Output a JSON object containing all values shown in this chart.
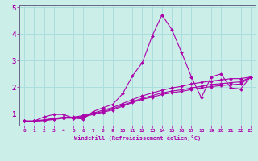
{
  "title": "",
  "xlabel": "Windchill (Refroidissement éolien,°C)",
  "ylabel": "",
  "bg_color": "#cceee8",
  "grid_color": "#aadddd",
  "line_color": "#aa00aa",
  "xlim": [
    -0.5,
    23.5
  ],
  "ylim": [
    0.55,
    5.1
  ],
  "xticks": [
    0,
    1,
    2,
    3,
    4,
    5,
    6,
    7,
    8,
    9,
    10,
    11,
    12,
    13,
    14,
    15,
    16,
    17,
    18,
    19,
    20,
    21,
    22,
    23
  ],
  "yticks": [
    1,
    2,
    3,
    4,
    5
  ],
  "lines": [
    {
      "x": [
        0,
        1,
        2,
        3,
        4,
        5,
        6,
        7,
        8,
        9,
        10,
        11,
        12,
        13,
        14,
        15,
        16,
        17,
        18,
        19,
        20,
        21,
        22,
        23
      ],
      "y": [
        0.72,
        0.72,
        0.88,
        0.97,
        0.97,
        0.83,
        0.8,
        1.08,
        1.22,
        1.35,
        1.75,
        2.42,
        2.92,
        3.92,
        4.72,
        4.17,
        3.3,
        2.38,
        1.6,
        2.38,
        2.5,
        1.97,
        1.93,
        2.38
      ]
    },
    {
      "x": [
        0,
        1,
        2,
        3,
        4,
        5,
        6,
        7,
        8,
        9,
        10,
        11,
        12,
        13,
        14,
        15,
        16,
        17,
        18,
        19,
        20,
        21,
        22,
        23
      ],
      "y": [
        0.72,
        0.72,
        0.77,
        0.82,
        0.87,
        0.87,
        0.93,
        1.02,
        1.13,
        1.23,
        1.38,
        1.53,
        1.67,
        1.78,
        1.88,
        1.97,
        2.03,
        2.12,
        2.18,
        2.23,
        2.27,
        2.32,
        2.32,
        2.38
      ]
    },
    {
      "x": [
        0,
        1,
        2,
        3,
        4,
        5,
        6,
        7,
        8,
        9,
        10,
        11,
        12,
        13,
        14,
        15,
        16,
        17,
        18,
        19,
        20,
        21,
        22,
        23
      ],
      "y": [
        0.72,
        0.72,
        0.75,
        0.8,
        0.85,
        0.85,
        0.9,
        1.0,
        1.08,
        1.18,
        1.32,
        1.45,
        1.58,
        1.68,
        1.78,
        1.85,
        1.9,
        1.97,
        2.03,
        2.1,
        2.13,
        2.17,
        2.2,
        2.38
      ]
    },
    {
      "x": [
        0,
        1,
        2,
        3,
        4,
        5,
        6,
        7,
        8,
        9,
        10,
        11,
        12,
        13,
        14,
        15,
        16,
        17,
        18,
        19,
        20,
        21,
        22,
        23
      ],
      "y": [
        0.72,
        0.72,
        0.74,
        0.78,
        0.83,
        0.83,
        0.88,
        0.97,
        1.05,
        1.14,
        1.28,
        1.42,
        1.54,
        1.62,
        1.72,
        1.79,
        1.84,
        1.91,
        1.97,
        2.02,
        2.06,
        2.09,
        2.12,
        2.38
      ]
    }
  ]
}
